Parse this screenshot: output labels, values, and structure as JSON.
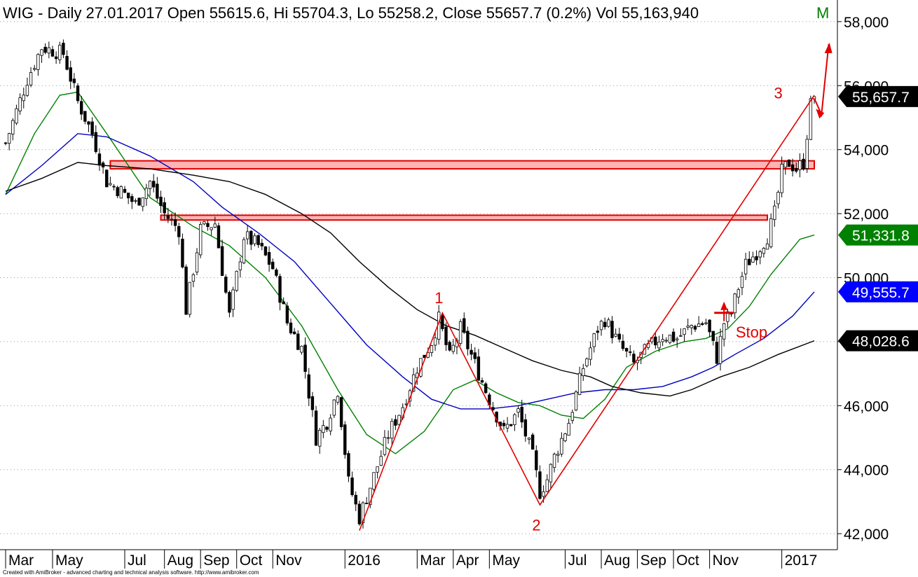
{
  "header": {
    "title": "WIG - Daily 27.01.2017 Open 55615.6, Hi 55704.3, Lo 55258.2, Close 55657.7 (0.2%) Vol 55,163,940",
    "ma_label": "M"
  },
  "footer": {
    "credit": "Created with AmiBroker - advanced charting and technical analysis software. http://www.amibroker.com"
  },
  "chart_data": {
    "type": "candlestick",
    "ylim": [
      41500,
      58500
    ],
    "y_ticks": [
      42000,
      44000,
      46000,
      48000,
      50000,
      52000,
      54000,
      56000,
      58000
    ],
    "y_tick_labels": [
      "42,000",
      "44,000",
      "46,000",
      "48,000",
      "50,000",
      "52,000",
      "54,000",
      "56,000",
      "58,000"
    ],
    "x_labels": [
      {
        "label": "Mar",
        "i": 0
      },
      {
        "label": "May",
        "i": 13
      },
      {
        "label": "Jul",
        "i": 33
      },
      {
        "label": "Aug",
        "i": 44
      },
      {
        "label": "Sep",
        "i": 54
      },
      {
        "label": "Oct",
        "i": 64
      },
      {
        "label": "Nov",
        "i": 74
      },
      {
        "label": "2016",
        "i": 94
      },
      {
        "label": "Mar",
        "i": 114
      },
      {
        "label": "Apr",
        "i": 124
      },
      {
        "label": "May",
        "i": 134
      },
      {
        "label": "Jul",
        "i": 155
      },
      {
        "label": "Aug",
        "i": 165
      },
      {
        "label": "Sep",
        "i": 175
      },
      {
        "label": "Oct",
        "i": 185
      },
      {
        "label": "Nov",
        "i": 195
      },
      {
        "label": "2017",
        "i": 215
      }
    ],
    "n_bars": 225,
    "close_anchors": [
      [
        0,
        54200
      ],
      [
        6,
        56200
      ],
      [
        10,
        57200
      ],
      [
        16,
        57000
      ],
      [
        20,
        55500
      ],
      [
        24,
        54500
      ],
      [
        28,
        53000
      ],
      [
        32,
        52700
      ],
      [
        36,
        52300
      ],
      [
        40,
        53000
      ],
      [
        44,
        52000
      ],
      [
        48,
        51500
      ],
      [
        50,
        49000
      ],
      [
        54,
        51500
      ],
      [
        58,
        51700
      ],
      [
        62,
        48800
      ],
      [
        66,
        51300
      ],
      [
        70,
        51000
      ],
      [
        74,
        50300
      ],
      [
        78,
        48600
      ],
      [
        82,
        47800
      ],
      [
        86,
        45000
      ],
      [
        89,
        45500
      ],
      [
        92,
        46500
      ],
      [
        95,
        43600
      ],
      [
        98,
        42500
      ],
      [
        102,
        43800
      ],
      [
        106,
        45100
      ],
      [
        110,
        46000
      ],
      [
        114,
        47200
      ],
      [
        118,
        48000
      ],
      [
        120,
        48700
      ],
      [
        123,
        47500
      ],
      [
        126,
        48400
      ],
      [
        130,
        47300
      ],
      [
        134,
        46200
      ],
      [
        138,
        45200
      ],
      [
        142,
        45800
      ],
      [
        146,
        44400
      ],
      [
        148,
        43300
      ],
      [
        150,
        43700
      ],
      [
        152,
        44400
      ],
      [
        156,
        45500
      ],
      [
        160,
        47200
      ],
      [
        164,
        48400
      ],
      [
        166,
        48700
      ],
      [
        170,
        47900
      ],
      [
        174,
        47300
      ],
      [
        178,
        47800
      ],
      [
        182,
        48200
      ],
      [
        186,
        48100
      ],
      [
        190,
        48500
      ],
      [
        194,
        48600
      ],
      [
        197,
        47500
      ],
      [
        199,
        48600
      ],
      [
        201,
        48900
      ],
      [
        203,
        49700
      ],
      [
        205,
        50400
      ],
      [
        208,
        50800
      ],
      [
        211,
        51300
      ],
      [
        213,
        52000
      ],
      [
        215,
        53300
      ],
      [
        217,
        53600
      ],
      [
        219,
        53400
      ],
      [
        221,
        53600
      ],
      [
        222,
        54500
      ],
      [
        223,
        55400
      ],
      [
        224,
        55657.7
      ]
    ],
    "moving_averages": [
      {
        "name": "",
        "color": "#008000",
        "values": [
          [
            0,
            52600
          ],
          [
            8,
            54500
          ],
          [
            15,
            55700
          ],
          [
            20,
            55800
          ],
          [
            28,
            54500
          ],
          [
            40,
            52500
          ],
          [
            52,
            51600
          ],
          [
            62,
            51000
          ],
          [
            72,
            50000
          ],
          [
            82,
            48500
          ],
          [
            92,
            46500
          ],
          [
            100,
            45100
          ],
          [
            108,
            44500
          ],
          [
            116,
            45200
          ],
          [
            124,
            46500
          ],
          [
            130,
            46800
          ],
          [
            136,
            46400
          ],
          [
            142,
            46100
          ],
          [
            148,
            46000
          ],
          [
            154,
            45700
          ],
          [
            160,
            45600
          ],
          [
            166,
            46200
          ],
          [
            172,
            47200
          ],
          [
            180,
            47700
          ],
          [
            188,
            48000
          ],
          [
            194,
            48100
          ],
          [
            200,
            48400
          ],
          [
            206,
            49100
          ],
          [
            212,
            50100
          ],
          [
            220,
            51200
          ],
          [
            224,
            51331.8
          ]
        ]
      },
      {
        "name": "",
        "color": "#0000c0",
        "values": [
          [
            0,
            52600
          ],
          [
            10,
            53500
          ],
          [
            20,
            54500
          ],
          [
            28,
            54400
          ],
          [
            40,
            53800
          ],
          [
            52,
            53000
          ],
          [
            60,
            52200
          ],
          [
            70,
            51400
          ],
          [
            80,
            50500
          ],
          [
            90,
            49200
          ],
          [
            100,
            47900
          ],
          [
            110,
            46900
          ],
          [
            118,
            46200
          ],
          [
            126,
            45900
          ],
          [
            134,
            45900
          ],
          [
            142,
            46000
          ],
          [
            150,
            46200
          ],
          [
            158,
            46400
          ],
          [
            166,
            46500
          ],
          [
            174,
            46500
          ],
          [
            182,
            46600
          ],
          [
            190,
            46900
          ],
          [
            196,
            47200
          ],
          [
            202,
            47600
          ],
          [
            210,
            48100
          ],
          [
            218,
            48800
          ],
          [
            224,
            49555.7
          ]
        ]
      },
      {
        "name": "",
        "color": "#000000",
        "values": [
          [
            0,
            52700
          ],
          [
            10,
            53100
          ],
          [
            20,
            53600
          ],
          [
            28,
            53500
          ],
          [
            40,
            53400
          ],
          [
            52,
            53200
          ],
          [
            62,
            53000
          ],
          [
            72,
            52600
          ],
          [
            82,
            52000
          ],
          [
            90,
            51400
          ],
          [
            98,
            50500
          ],
          [
            106,
            49700
          ],
          [
            114,
            49000
          ],
          [
            122,
            48500
          ],
          [
            130,
            48200
          ],
          [
            138,
            47800
          ],
          [
            146,
            47400
          ],
          [
            154,
            47100
          ],
          [
            162,
            46900
          ],
          [
            168,
            46600
          ],
          [
            176,
            46400
          ],
          [
            184,
            46300
          ],
          [
            190,
            46500
          ],
          [
            198,
            46900
          ],
          [
            206,
            47200
          ],
          [
            214,
            47600
          ],
          [
            224,
            48028.6
          ]
        ]
      }
    ],
    "resistance_zones": [
      {
        "y0": 53400,
        "y1": 53650,
        "i0": 29,
        "i1": 224
      },
      {
        "y0": 51800,
        "y1": 51950,
        "i0": 43,
        "i1": 211
      }
    ],
    "pattern_line": [
      [
        98,
        42100
      ],
      [
        121,
        48900
      ],
      [
        148,
        42900
      ],
      [
        224,
        55700
      ]
    ],
    "pattern_labels": [
      {
        "text": "1",
        "i": 120,
        "y": 49200
      },
      {
        "text": "2",
        "i": 147,
        "y": 42100
      },
      {
        "text": "3",
        "i": 214,
        "y": 55600
      }
    ],
    "projection_arrow": [
      [
        224,
        55600
      ],
      [
        226,
        55100
      ],
      [
        228,
        57300
      ]
    ],
    "stop_marker": {
      "text": "Stop",
      "i": 199,
      "y": 48900,
      "label_i": 203,
      "label_y": 48300
    },
    "price_badges": [
      {
        "label": "55,657.7",
        "value": 55657.7,
        "bg": "#000000",
        "fg": "#ffffff"
      },
      {
        "label": "51,331.8",
        "value": 51331.8,
        "bg": "#008000",
        "fg": "#ffffff"
      },
      {
        "label": "49,555.7",
        "value": 49555.7,
        "bg": "#0000ff",
        "fg": "#ffffff"
      },
      {
        "label": "48,028.6",
        "value": 48028.6,
        "bg": "#000000",
        "fg": "#ffffff"
      }
    ],
    "colors": {
      "candle": "#000000",
      "pattern": "#e00000",
      "zone_fill": "#ffb3b3",
      "zone_stroke": "#e00000"
    },
    "grid": "horizontal dotted"
  }
}
